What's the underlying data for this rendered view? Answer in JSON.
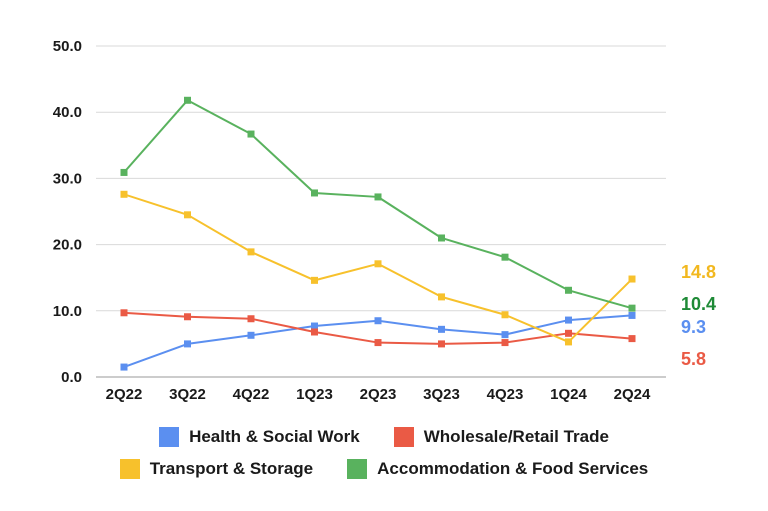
{
  "chart_data": {
    "type": "line",
    "categories": [
      "2Q22",
      "3Q22",
      "4Q22",
      "1Q23",
      "2Q23",
      "3Q23",
      "4Q23",
      "1Q24",
      "2Q24"
    ],
    "ylim": [
      0,
      50
    ],
    "yticks": [
      "0.0",
      "10.0",
      "20.0",
      "30.0",
      "40.0",
      "50.0"
    ],
    "grid": true,
    "legend_position": "bottom",
    "series": [
      {
        "name": "Health & Social Work",
        "color": "#5B8FF0",
        "values": [
          1.5,
          5.0,
          6.3,
          7.7,
          8.5,
          7.2,
          6.4,
          8.6,
          9.3
        ],
        "end_label": "9.3",
        "label_color": "#5B8FF0"
      },
      {
        "name": "Wholesale/Retail Trade",
        "color": "#EA5A45",
        "values": [
          9.7,
          9.1,
          8.8,
          6.8,
          5.2,
          5.0,
          5.2,
          6.6,
          5.8
        ],
        "end_label": "5.8",
        "label_color": "#EA5A45"
      },
      {
        "name": "Transport & Storage",
        "color": "#F7C12C",
        "values": [
          27.6,
          24.5,
          18.9,
          14.6,
          17.1,
          12.1,
          9.4,
          5.3,
          14.8
        ],
        "end_label": "14.8",
        "label_color": "#F2B81F"
      },
      {
        "name": "Accommodation & Food Services",
        "color": "#59B25E",
        "values": [
          30.9,
          41.8,
          36.7,
          27.8,
          27.2,
          21.0,
          18.1,
          13.1,
          10.4
        ],
        "end_label": "10.4",
        "label_color": "#1E8A36"
      }
    ]
  }
}
